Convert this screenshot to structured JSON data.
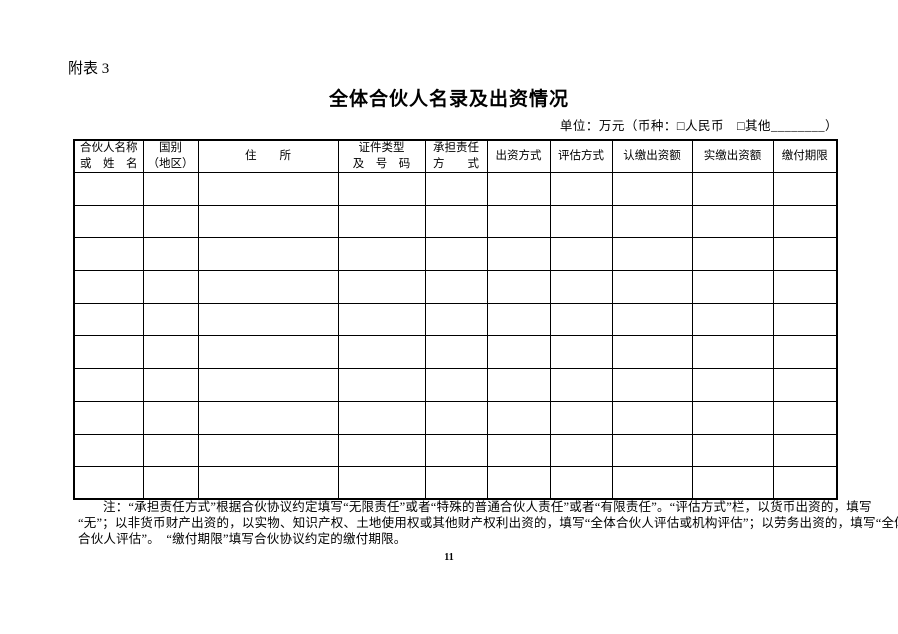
{
  "page": {
    "annex_label": "附表 3",
    "title": "全体合伙人名录及出资情况",
    "unit_line": "单位：万元（币种：□人民币　□其他________）",
    "page_number": "11"
  },
  "table": {
    "column_headers": [
      "合伙人名称\n或　姓　名",
      "国别\n（地区）",
      "住　　所",
      "证件类型\n及　号　码",
      "承担责任\n方　　式",
      "出资方式",
      "评估方式",
      "认缴出资额",
      "实缴出资额",
      "缴付期限"
    ],
    "empty_row_count": 10
  },
  "note": {
    "lines": [
      "注：“承担责任方式”根据合伙协议约定填写“无限责任”或者“特殊的普通合伙人责任”或者“有限责任”。“评估方式”栏，以货币出资的，填写",
      "“无”；以非货币财产出资的，以实物、知识产权、土地使用权或其他财产权利出资的，填写“全体合伙人评估或机构评估”；以劳务出资的，填写“全体",
      "合伙人评估”。　“缴付期限”填写合伙协议约定的缴付期限。"
    ]
  },
  "colors": {
    "text": "#000000",
    "border": "#000000",
    "background": "#ffffff"
  }
}
